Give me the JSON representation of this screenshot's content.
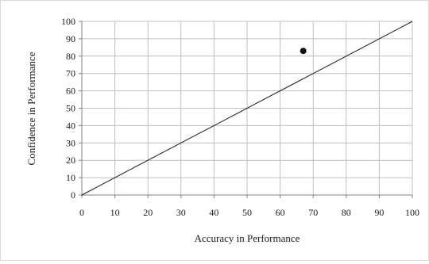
{
  "chart_data": {
    "type": "scatter",
    "title": "",
    "xlabel": "Accuracy in Performance",
    "ylabel": "Confidence in Performance",
    "xlim": [
      0,
      100
    ],
    "ylim": [
      0,
      100
    ],
    "x_ticks": [
      "0",
      "10",
      "20",
      "30",
      "40",
      "50",
      "60",
      "70",
      "80",
      "90",
      "100"
    ],
    "y_ticks": [
      "0",
      "10",
      "20",
      "30",
      "40",
      "50",
      "60",
      "70",
      "80",
      "90",
      "100"
    ],
    "grid": true,
    "legend": "none",
    "series": [
      {
        "points": [
          {
            "x": 67,
            "y": 83
          }
        ]
      }
    ],
    "reference_line": {
      "from": [
        0,
        0
      ],
      "to": [
        100,
        100
      ]
    },
    "colors": {
      "grid": "#bfbfbf",
      "axis": "#808080",
      "marker": "#111111",
      "line": "#1a1a1a"
    }
  }
}
